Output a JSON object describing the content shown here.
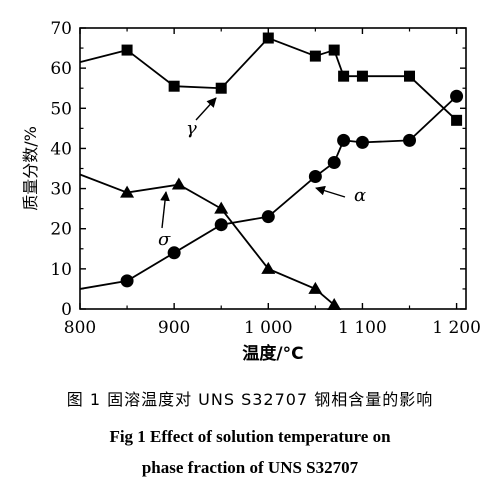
{
  "chart_data": {
    "type": "line",
    "xlabel": "温度/°C",
    "ylabel": "质量分数/%",
    "xlim": [
      800,
      1210
    ],
    "ylim": [
      0,
      70
    ],
    "x_ticks": [
      800,
      900,
      1000,
      1100,
      1200
    ],
    "x_tick_labels": [
      "800",
      "900",
      "1 000",
      "1 100",
      "1 200"
    ],
    "y_ticks": [
      0,
      10,
      20,
      30,
      40,
      50,
      60,
      70
    ],
    "y_tick_labels": [
      "0",
      "10",
      "20",
      "30",
      "40",
      "50",
      "60",
      "70"
    ],
    "grid": false,
    "series": [
      {
        "name": "γ",
        "marker": "square",
        "points": [
          [
            800,
            61.5
          ],
          [
            850,
            64.5
          ],
          [
            900,
            55.5
          ],
          [
            950,
            55
          ],
          [
            1000,
            67.5
          ],
          [
            1050,
            63
          ],
          [
            1070,
            64.5
          ],
          [
            1080,
            58
          ],
          [
            1100,
            58
          ],
          [
            1150,
            58
          ],
          [
            1200,
            47
          ]
        ]
      },
      {
        "name": "α",
        "marker": "circle",
        "points": [
          [
            800,
            5
          ],
          [
            850,
            7
          ],
          [
            900,
            14
          ],
          [
            950,
            21
          ],
          [
            1000,
            23
          ],
          [
            1050,
            33
          ],
          [
            1070,
            36.5
          ],
          [
            1080,
            42
          ],
          [
            1100,
            41.5
          ],
          [
            1150,
            42
          ],
          [
            1200,
            53
          ]
        ]
      },
      {
        "name": "σ",
        "marker": "triangle",
        "points": [
          [
            800,
            33.5
          ],
          [
            850,
            29
          ],
          [
            905,
            31
          ],
          [
            950,
            25
          ],
          [
            1000,
            10
          ],
          [
            1050,
            5
          ],
          [
            1070,
            1
          ]
        ]
      }
    ]
  },
  "caption": {
    "zh": "图 1  固溶温度对 UNS S32707 钢相含量的影响",
    "en_line1": "Fig 1   Effect of solution temperature on",
    "en_line2": "phase fraction of UNS S32707"
  }
}
